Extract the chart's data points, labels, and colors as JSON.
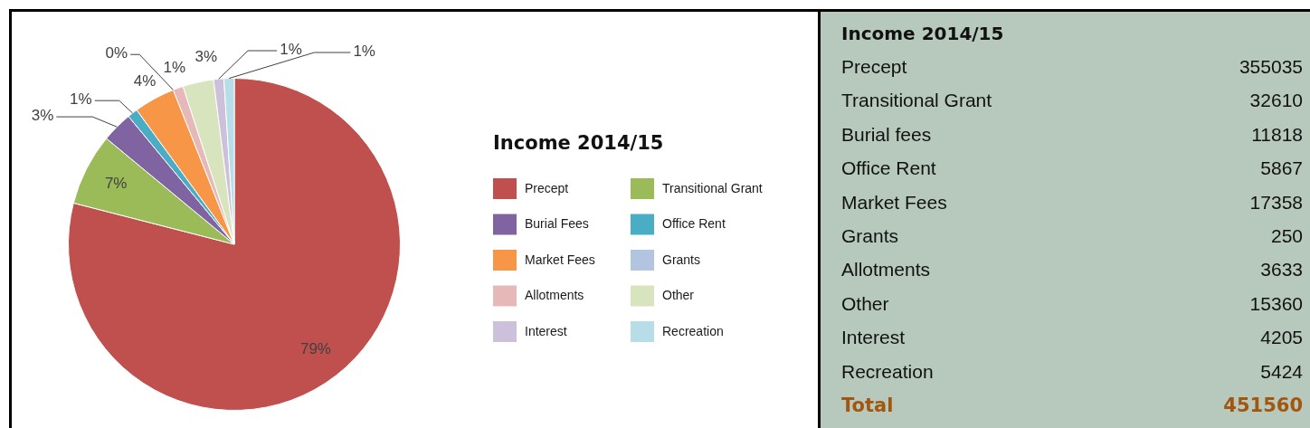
{
  "chart_data": [
    {
      "type": "pie",
      "legend_title": "Income 2014/15",
      "legend": "right",
      "categories": [
        "Precept",
        "Transitional Grant",
        "Burial Fees",
        "Office Rent",
        "Market Fees",
        "Grants",
        "Allotments",
        "Other",
        "Interest",
        "Recreation"
      ],
      "values": [
        79,
        7,
        3,
        1,
        4,
        0,
        1,
        3,
        1,
        1
      ],
      "colors": [
        "#c0504d",
        "#9bbb59",
        "#8064a2",
        "#4bacc6",
        "#f79646",
        "#b3c4e0",
        "#e6b9b8",
        "#d7e4bd",
        "#ccc0da",
        "#b7dde8"
      ],
      "value_labels": [
        "79%",
        "7%",
        "3%",
        "1%",
        "4%",
        "0%",
        "1%",
        "3%",
        "1%",
        "1%"
      ]
    },
    {
      "type": "other",
      "title": "Income 2014/15",
      "categories": [
        "Precept",
        "Transitional Grant",
        "Burial fees",
        "Office Rent",
        "Market Fees",
        "Grants",
        "Allotments",
        "Other",
        "Interest",
        "Recreation"
      ],
      "values": [
        355035,
        32610,
        11818,
        5867,
        17358,
        250,
        3633,
        15360,
        4205,
        5424
      ],
      "data_labels": true,
      "annotations": [
        "Total"
      ],
      "totals": [
        "451560"
      ]
    }
  ]
}
